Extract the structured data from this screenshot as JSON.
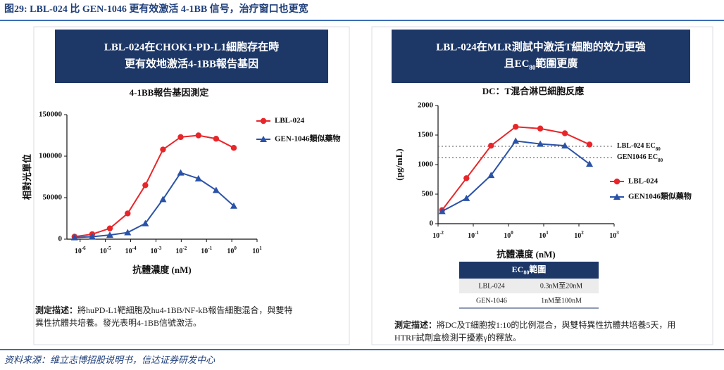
{
  "header": {
    "title": "图29: LBL-024 比 GEN-1046 更有效激活 4-1BB 信号，治疗窗口也更宽"
  },
  "panels": [
    {
      "heading": [
        "LBL-024在CHOK1-PD-L1細胞存在時",
        "更有效地激活4-1BB報告基因"
      ],
      "description": {
        "label": "測定描述：",
        "lines": [
          "將huPD-L1靶細胞及hu4-1BB/NF-kB報告細胞混合，與雙特",
          "異性抗體共培養。發光表明4-1BB信號激活。"
        ]
      }
    },
    {
      "heading": [
        "LBL-024在MLR測試中激活T細胞的效力更強",
        {
          "text": "且EC",
          "sub": "80",
          "rest": "範圍更廣"
        }
      ],
      "description": {
        "label": "測定描述：",
        "lines": [
          "將DC及T細胞按1:10的比例混合，與雙特異性抗體共培養5天，用",
          "HTRF試劑盒檢測干擾素γ的釋放。"
        ]
      }
    }
  ],
  "chart_data": [
    {
      "type": "line",
      "title": "4-1BB報告基因測定",
      "x_label": "抗體濃度 (nM)",
      "y_label": "相對光單位",
      "xscale": "log",
      "xlim": [
        3e-07,
        10
      ],
      "xticks": [
        {
          "value": 1e-06,
          "label": "10",
          "exponent": "-6"
        },
        {
          "value": 1e-05,
          "label": "10",
          "exponent": "-5"
        },
        {
          "value": 0.0001,
          "label": "10",
          "exponent": "-4"
        },
        {
          "value": 0.001,
          "label": "10",
          "exponent": "-3"
        },
        {
          "value": 0.01,
          "label": "10",
          "exponent": "-2"
        },
        {
          "value": 0.1,
          "label": "10",
          "exponent": "-1"
        },
        {
          "value": 1,
          "label": "10",
          "exponent": "0"
        },
        {
          "value": 10,
          "label": "10",
          "exponent": "1"
        }
      ],
      "ylim": [
        0,
        150000
      ],
      "yticks": [
        0,
        50000,
        100000,
        150000
      ],
      "x": [
        6e-07,
        3e-06,
        1.5e-05,
        7.6e-05,
        0.00038,
        0.0019,
        0.0095,
        0.048,
        0.24,
        1.2
      ],
      "series": [
        {
          "name": "LBL-024",
          "color": "#e8262a",
          "marker": "circle",
          "values": [
            3000,
            6000,
            13000,
            31000,
            65000,
            108000,
            123000,
            125000,
            121000,
            110000
          ]
        },
        {
          "name": "GEN-1046類似藥物",
          "color": "#2a52a8",
          "marker": "triangle",
          "values": [
            2000,
            3000,
            5000,
            8000,
            19000,
            48000,
            80000,
            73000,
            59000,
            40000
          ]
        }
      ],
      "legend": "right"
    },
    {
      "type": "line",
      "title": "DC：T混合淋巴細胞反應",
      "x_label": "抗體濃度 (nM)",
      "y_label": "(pg/mL)",
      "xscale": "log",
      "xlim": [
        0.01,
        1000
      ],
      "xticks": [
        {
          "value": 0.01,
          "label": "10",
          "exponent": "-2"
        },
        {
          "value": 0.1,
          "label": "10",
          "exponent": "-1"
        },
        {
          "value": 1,
          "label": "10",
          "exponent": "0"
        },
        {
          "value": 10,
          "label": "10",
          "exponent": "1"
        },
        {
          "value": 100,
          "label": "10",
          "exponent": "2"
        },
        {
          "value": 1000,
          "label": "10",
          "exponent": "3"
        }
      ],
      "ylim": [
        0,
        2000
      ],
      "yticks": [
        0,
        500,
        1000,
        1500,
        2000
      ],
      "x": [
        0.013,
        0.064,
        0.32,
        1.6,
        8,
        40,
        200
      ],
      "series": [
        {
          "name": "LBL-024",
          "color": "#e8262a",
          "marker": "circle",
          "values": [
            230,
            770,
            1320,
            1640,
            1610,
            1530,
            1340
          ]
        },
        {
          "name": "GEN1046類似藥物",
          "color": "#2a52a8",
          "marker": "triangle",
          "values": [
            210,
            430,
            820,
            1400,
            1350,
            1320,
            1010
          ]
        }
      ],
      "reference_lines": [
        {
          "value": 1310,
          "label": {
            "text": "LBL-024 EC",
            "sub": "80"
          }
        },
        {
          "value": 1120,
          "label": {
            "text": "GEN1046 EC",
            "sub": "80"
          }
        }
      ],
      "legend": "lower right"
    }
  ],
  "table": {
    "header": {
      "text": "EC",
      "sub": "80",
      "rest": "範圍"
    },
    "rows": [
      [
        "LBL-024",
        "0.3nM至20nM"
      ],
      [
        "GEN-1046",
        "1nM至100nM"
      ]
    ]
  },
  "source": "资料来源：维立志博招股说明书，信达证券研发中心"
}
